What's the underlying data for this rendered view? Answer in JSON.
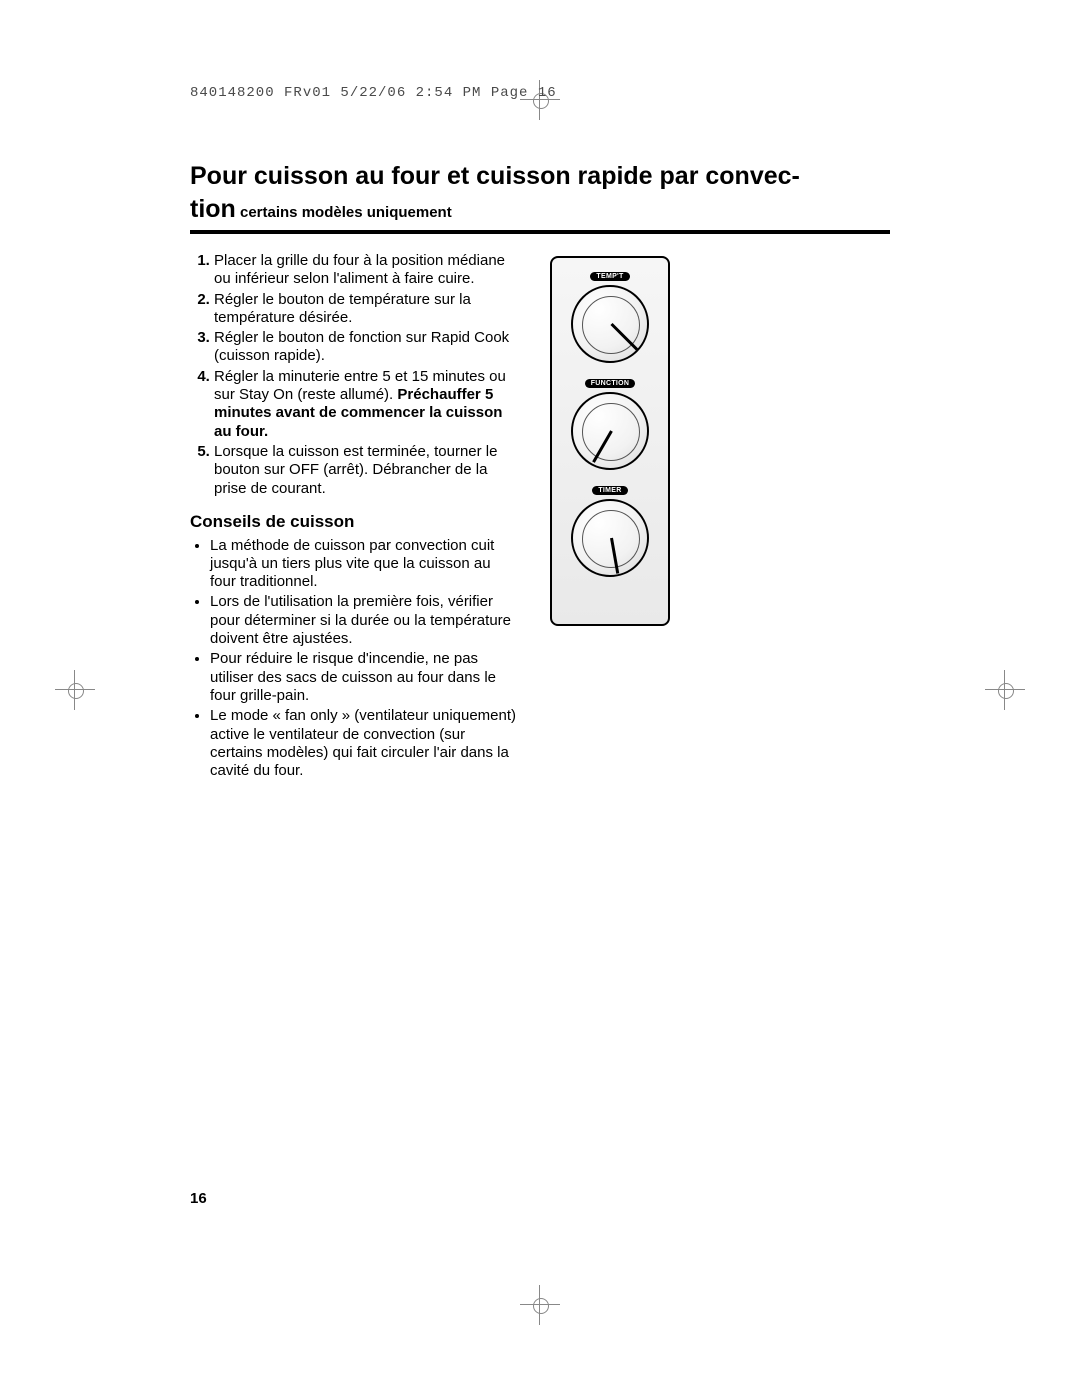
{
  "slug": "840148200 FRv01  5/22/06  2:54 PM  Page 16",
  "title_line1": "Pour cuisson au four et cuisson rapide par convec-",
  "title_line2_big": "tion",
  "title_line2_small": " certains modèles uniquement",
  "steps": [
    "Placer la grille du four à la position médiane ou inférieur selon l'aliment à faire cuire.",
    "Régler le bouton de température sur la température désirée.",
    "Régler le bouton de fonction sur Rapid Cook (cuisson rapide).",
    "Régler la minuterie entre 5 et 15 minutes ou sur Stay On (reste allumé).",
    "Lorsque la cuisson est terminée, tourner le bouton sur OFF (arrêt). Débrancher de la prise de courant."
  ],
  "step4_bold": "Préchauffer 5 minutes avant de commencer la cuisson au four.",
  "tips_heading": "Conseils de cuisson",
  "tips": [
    "La méthode de cuisson par convection cuit jusqu'à un tiers plus vite que la cuisson au four traditionnel.",
    "Lors de l'utilisation la première fois, vérifier pour déterminer si la durée ou la température doivent être ajustées.",
    "Pour réduire le risque d'incendie, ne pas utiliser des sacs de cuisson au four dans le four grille-pain.",
    "Le mode « fan only » (ventilateur uniquement) active le ventilateur de convection (sur certains modèles) qui fait circuler l'air dans la cavité du four."
  ],
  "dials": [
    {
      "label": "TEMP'T",
      "angle": -45
    },
    {
      "label": "FUNCTION",
      "angle": 30
    },
    {
      "label": "TIMER",
      "angle": -10
    }
  ],
  "page_number": "16",
  "colors": {
    "text": "#000000",
    "rule": "#000000",
    "reg": "#888888",
    "panel_border": "#000000"
  }
}
